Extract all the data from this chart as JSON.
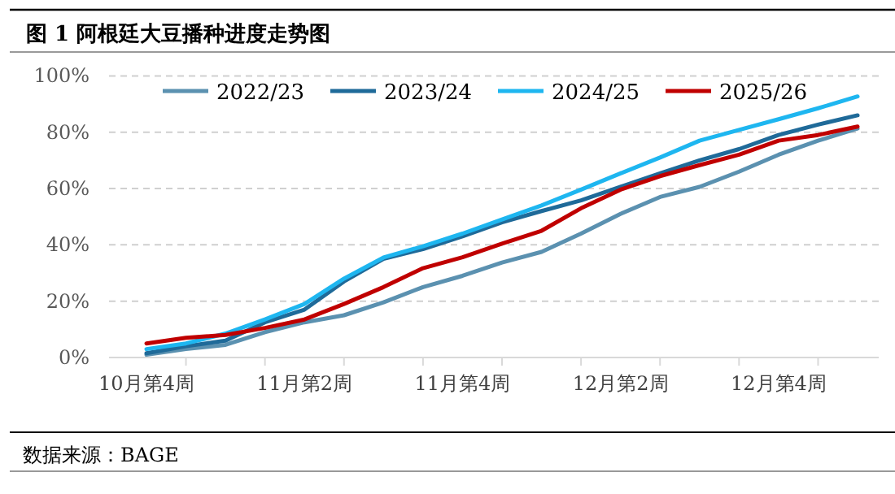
{
  "chart_data": {
    "type": "line",
    "title": "图 1  阿根廷大豆播种进度走势图",
    "categories": [
      "10月第4周",
      null,
      null,
      null,
      "11月第2周",
      null,
      null,
      null,
      "11月第4周",
      null,
      null,
      null,
      "12月第2周",
      null,
      null,
      null,
      "12月第4周",
      null,
      null
    ],
    "series": [
      {
        "name": "2022/23",
        "color": "#5b91b0",
        "values": [
          1,
          3,
          4.5,
          9,
          12.5,
          15,
          19.6,
          25,
          29,
          33.7,
          37.5,
          44,
          51,
          57,
          60.6,
          66,
          72,
          77,
          81.3
        ]
      },
      {
        "name": "2023/24",
        "color": "#1f6a99",
        "values": [
          1.5,
          4,
          6,
          12.5,
          17,
          27,
          35,
          38.5,
          43,
          48,
          52,
          55.8,
          60.6,
          65.4,
          70,
          74,
          79,
          82.7,
          86
        ]
      },
      {
        "name": "2024/25",
        "color": "#1eb6f0",
        "values": [
          3,
          5,
          8.5,
          13.5,
          19,
          28,
          35.5,
          39.5,
          44,
          49,
          54,
          59.6,
          65.4,
          71,
          77,
          80.8,
          84.6,
          88.5,
          92.7
        ]
      },
      {
        "name": "2025/26",
        "color": "#c00000",
        "values": [
          5,
          7,
          8,
          10.5,
          13.5,
          19,
          25,
          31.7,
          35.6,
          40.4,
          45,
          53,
          59.6,
          64.4,
          68.3,
          72,
          77,
          79,
          82
        ]
      }
    ],
    "ylim": [
      0,
      100
    ],
    "yticks": [
      {
        "value": 0,
        "label": "0%"
      },
      {
        "value": 20,
        "label": "20%"
      },
      {
        "value": 40,
        "label": "40%"
      },
      {
        "value": 60,
        "label": "60%"
      },
      {
        "value": 80,
        "label": "80%"
      },
      {
        "value": 100,
        "label": "100%"
      }
    ],
    "grid": "y",
    "legend": "top",
    "marker": "none",
    "line_style": "solid",
    "annotations": [
      "数据来源：BAGE"
    ]
  }
}
